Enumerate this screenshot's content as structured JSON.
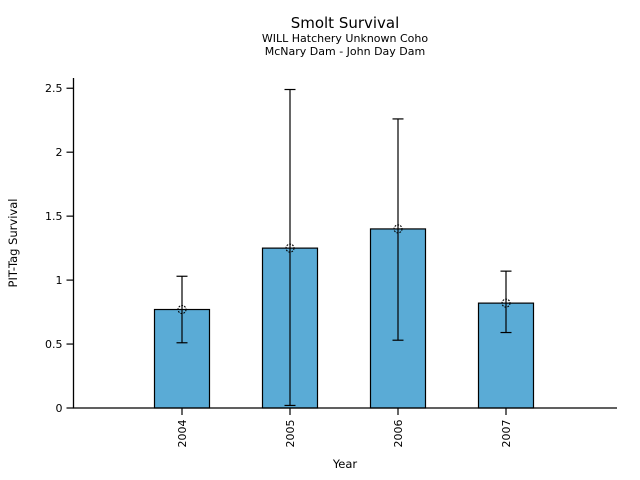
{
  "figure": {
    "background_color": "#ffffff"
  },
  "chart_data": {
    "type": "bar",
    "title": "Smolt Survival",
    "subtitle_line1": "WILL Hatchery Unknown Coho",
    "subtitle_line2": "McNary Dam - John Day Dam",
    "xlabel": "Year",
    "ylabel": "PIT-Tag Survival",
    "categories": [
      "2004",
      "2005",
      "2006",
      "2007"
    ],
    "series": [
      {
        "name": "PIT-Tag Survival",
        "values": [
          0.77,
          1.25,
          1.4,
          0.82
        ],
        "error_low": [
          0.51,
          0.02,
          0.53,
          0.59
        ],
        "error_high": [
          1.03,
          2.49,
          2.26,
          1.07
        ]
      }
    ],
    "ytick_labels": [
      "0",
      "0.5",
      "1",
      "1.5",
      "2",
      "2.5"
    ],
    "ytick_values": [
      0,
      0.5,
      1,
      1.5,
      2,
      2.5
    ],
    "ylim": [
      0,
      2.58
    ],
    "grid": false,
    "legend": null,
    "bar_color": "#5aabd6",
    "bar_edge_color": "#000000",
    "error_bar_color": "#000000",
    "marker": "open-circle"
  }
}
